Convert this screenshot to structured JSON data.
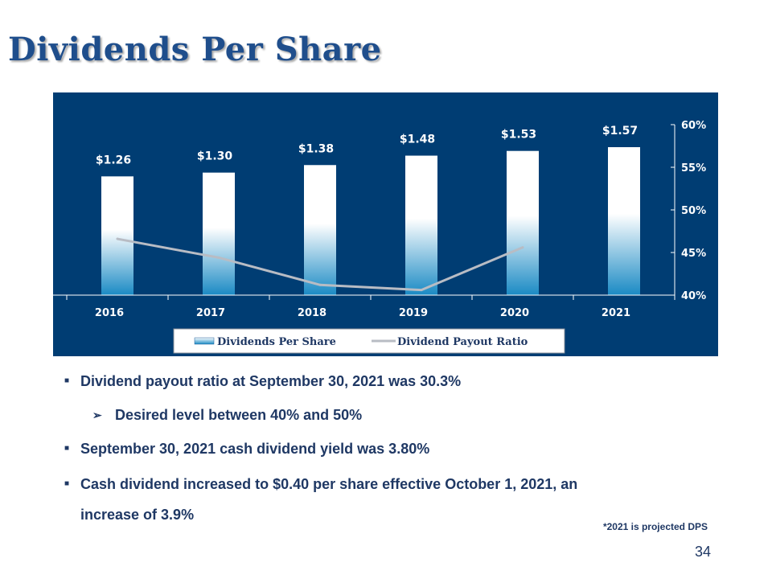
{
  "page": {
    "title": "Dividends Per Share",
    "footnote": "*2021 is projected DPS",
    "page_number": "34"
  },
  "bullets": [
    {
      "text": "Dividend payout ratio at September 30, 2021 was 30.3%",
      "level": 1
    },
    {
      "text": "Desired level between 40% and 50%",
      "level": 2
    },
    {
      "text": "September 30, 2021 cash dividend yield was 3.80%",
      "level": 1
    },
    {
      "text": "Cash dividend increased to $0.40 per share effective October 1, 2021, an",
      "level": 1
    },
    {
      "text": "increase of 3.9%",
      "level": 0
    }
  ],
  "chart_data": {
    "type": "bar",
    "categories": [
      "2016",
      "2017",
      "2018",
      "2019",
      "2020",
      "2021"
    ],
    "series": [
      {
        "name": "Dividends Per Share",
        "type": "bar",
        "values": [
          1.26,
          1.3,
          1.38,
          1.48,
          1.53,
          1.57
        ],
        "labels": [
          "$1.26",
          "$1.30",
          "$1.38",
          "$1.48",
          "$1.53",
          "$1.57"
        ]
      },
      {
        "name": "Dividend Payout Ratio",
        "type": "line",
        "axis": "right",
        "values": [
          46.6,
          44.4,
          41.2,
          40.6,
          45.6,
          null
        ]
      }
    ],
    "y2_ticks": [
      "40%",
      "45%",
      "50%",
      "55%",
      "60%"
    ],
    "y2lim": [
      40,
      60
    ],
    "legend_position": "bottom",
    "colors": {
      "background": "#003d73",
      "bar_top": "#ffffff",
      "bar_bottom": "#1a8ac4",
      "line": "#b8bcc4",
      "text": "#ffffff"
    }
  }
}
